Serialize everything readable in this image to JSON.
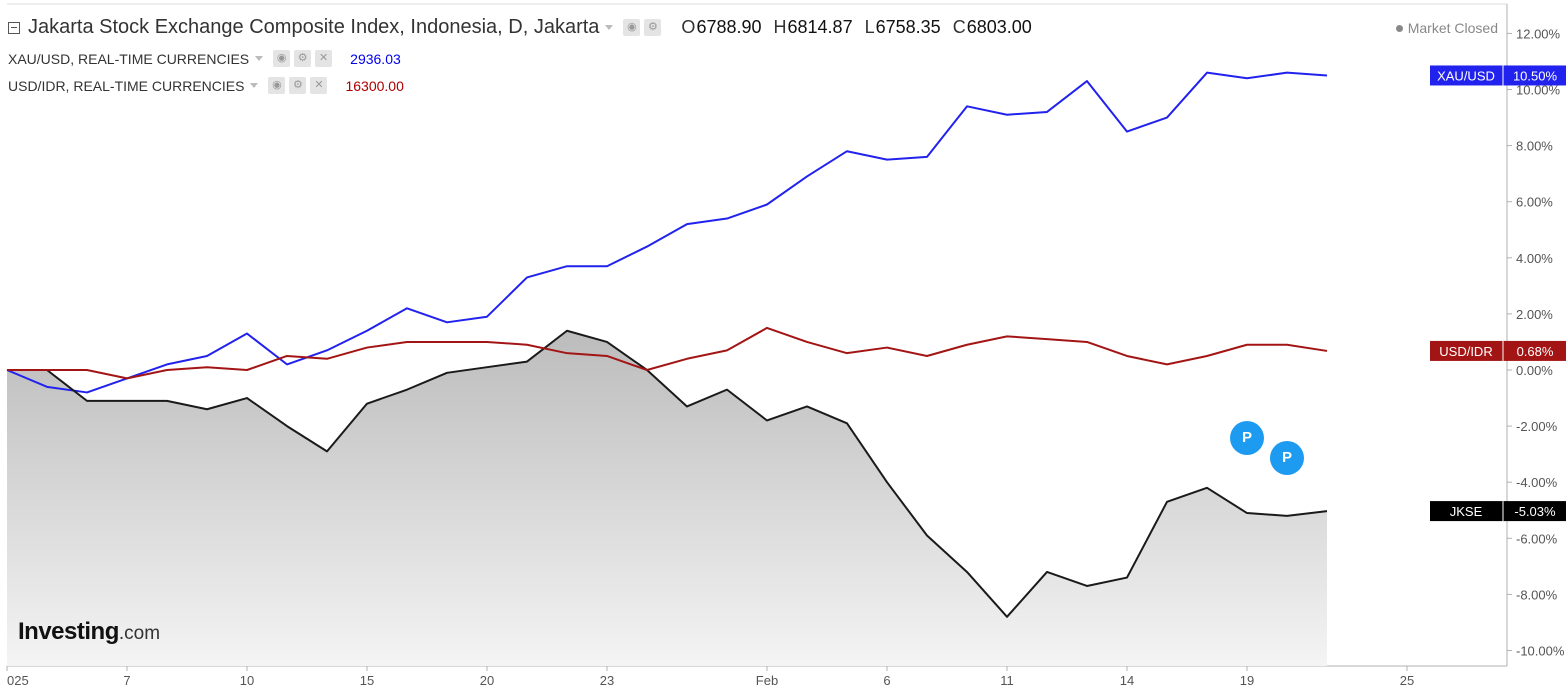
{
  "header": {
    "title": "Jakarta Stock Exchange Composite Index, Indonesia, D, Jakarta",
    "ohlc": [
      {
        "k": "O",
        "v": "6788.90"
      },
      {
        "k": "H",
        "v": "6814.87"
      },
      {
        "k": "L",
        "v": "6758.35"
      },
      {
        "k": "C",
        "v": "6803.00"
      }
    ],
    "status": "Market Closed"
  },
  "legend": [
    {
      "label": "XAU/USD, REAL-TIME CURRENCIES",
      "value": "2936.03",
      "color": "#0000ee"
    },
    {
      "label": "USD/IDR, REAL-TIME CURRENCIES",
      "value": "16300.00",
      "color": "#aa0000"
    }
  ],
  "logo": {
    "main": "Investing",
    "suffix": ".com"
  },
  "markers": {
    "label": "P",
    "color": "#1d9bf0"
  },
  "chart_data": {
    "type": "line",
    "y_axis": {
      "min": -10.5,
      "max": 12.5,
      "ticks": [
        12,
        10,
        8,
        6,
        4,
        2,
        0,
        -2,
        -4,
        -6,
        -8,
        -10
      ],
      "tick_labels": [
        "12.00%",
        "10.00%",
        "8.00%",
        "6.00%",
        "4.00%",
        "2.00%",
        "0.00%",
        "-2.00%",
        "-4.00%",
        "-6.00%",
        "-8.00%",
        "-10.00%"
      ]
    },
    "x_axis": {
      "ticks": [
        {
          "x": 0,
          "label": "025"
        },
        {
          "x": 3,
          "label": "7"
        },
        {
          "x": 6,
          "label": "10"
        },
        {
          "x": 9,
          "label": "15"
        },
        {
          "x": 12,
          "label": "20"
        },
        {
          "x": 15,
          "label": "23"
        },
        {
          "x": 19,
          "label": "Feb"
        },
        {
          "x": 22,
          "label": "6"
        },
        {
          "x": 25,
          "label": "11"
        },
        {
          "x": 28,
          "label": "14"
        },
        {
          "x": 31,
          "label": "19"
        },
        {
          "x": 35,
          "label": "25"
        }
      ],
      "range": [
        0,
        37.4
      ]
    },
    "series": [
      {
        "name": "XAU/USD",
        "color": "#2222ee",
        "last_label": "10.50%",
        "values": [
          0,
          -0.6,
          -0.8,
          -0.3,
          0.2,
          0.5,
          1.3,
          0.2,
          0.7,
          1.4,
          2.2,
          1.7,
          1.9,
          3.3,
          3.7,
          3.7,
          4.4,
          5.2,
          5.4,
          5.9,
          6.9,
          7.8,
          7.5,
          7.6,
          9.4,
          9.1,
          9.2,
          10.3,
          8.5,
          9.0,
          10.6,
          10.4,
          10.6,
          10.5
        ]
      },
      {
        "name": "USD/IDR",
        "color": "#a31515",
        "last_label": "0.68%",
        "values": [
          0,
          0,
          0,
          -0.3,
          0,
          0.1,
          0,
          0.5,
          0.4,
          0.8,
          1.0,
          1.0,
          1.0,
          0.9,
          0.6,
          0.5,
          0,
          0.4,
          0.7,
          1.5,
          1.0,
          0.6,
          0.8,
          0.5,
          0.9,
          1.2,
          1.1,
          1.0,
          0.5,
          0.2,
          0.5,
          0.9,
          0.9,
          0.68
        ]
      },
      {
        "name": "JKSE",
        "color": "#1a1a1a",
        "last_label": "-5.03%",
        "values": [
          0,
          0,
          -1.1,
          -1.1,
          -1.1,
          -1.4,
          -1.0,
          -2.0,
          -2.9,
          -1.2,
          -0.7,
          -0.1,
          0.1,
          0.3,
          1.4,
          1.0,
          0,
          -1.3,
          -0.7,
          -1.8,
          -1.3,
          -1.9,
          -4.0,
          -5.9,
          -7.2,
          -8.8,
          -7.2,
          -7.7,
          -7.4,
          -4.7,
          -4.2,
          -5.1,
          -5.2,
          -5.03
        ]
      }
    ]
  }
}
